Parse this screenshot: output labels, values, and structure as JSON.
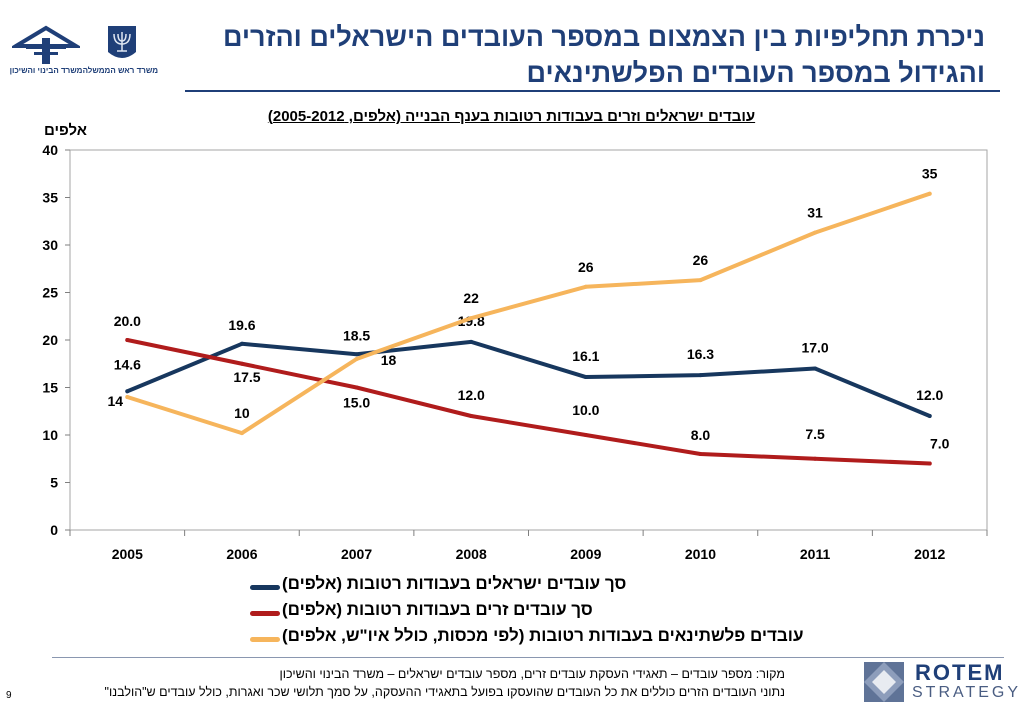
{
  "header": {
    "title_line1": "ניכרת תחליפיות בין הצמצום במספר העובדים הישראלים והזרים",
    "title_line2": "והגידול במספר העובדים הפלשתינאים",
    "logo1_caption": "משרד הבינוי והשיכון",
    "logo2_caption": "משרד ראש הממשלה",
    "logo1_icon": "house-icon",
    "logo2_icon": "menorah-emblem-icon"
  },
  "chart_data": {
    "type": "line",
    "title": "עובדים ישראלים וזרים בעבודות רטובות בענף הבנייה (אלפים, 2005-2012)",
    "ylabel": "אלפים",
    "xlabel": "",
    "categories": [
      "2005",
      "2006",
      "2007",
      "2008",
      "2009",
      "2010",
      "2011",
      "2012"
    ],
    "ylim": [
      0,
      40
    ],
    "yticks": [
      0,
      5,
      10,
      15,
      20,
      25,
      30,
      35,
      40
    ],
    "grid": false,
    "series": [
      {
        "name": "סך עובדים ישראלים בעבודות רטובות (אלפים)",
        "color": "#17375e",
        "values": [
          14.6,
          19.6,
          18.5,
          19.8,
          16.1,
          16.3,
          17.0,
          12.0
        ],
        "labels": [
          "14.6",
          "19.6",
          "18.5",
          "19.8",
          "16.1",
          "16.3",
          "17.0",
          "12.0"
        ]
      },
      {
        "name": "סך עובדים זרים בעבודות רטובות (אלפים)",
        "color": "#b01c1c",
        "values": [
          20.0,
          17.5,
          15.0,
          12.0,
          10.0,
          8.0,
          7.5,
          7.0
        ],
        "labels": [
          "20.0",
          "17.5",
          "15.0",
          "12.0",
          "10.0",
          "8.0",
          "7.5",
          "7.0"
        ]
      },
      {
        "name": "עובדים פלשתינאים בעבודות רטובות (לפי מכסות, כולל איו\"ש, אלפים)",
        "color": "#f6b55c",
        "values": [
          14,
          10.2,
          18,
          22.3,
          25.6,
          26.3,
          31.3,
          35.4
        ],
        "labels": [
          "14",
          "10",
          "18",
          "22",
          "26",
          "26",
          "31",
          "35"
        ]
      }
    ]
  },
  "footer": {
    "source_line": "מקור: מספר עובדים – תאגידי העסקת עובדים זרים, מספר עובדים ישראלים – משרד הבינוי והשיכון",
    "note_line": "נתוני העובדים הזרים כוללים את כל העובדים שהועסקו בפועל בתאגידי ההעסקה, על סמך תלושי שכר ואגרות, כולל עובדים ש\"הולבנו\"",
    "page_number": "9",
    "brand_top": "ROTEM",
    "brand_bottom": "STRATEGY",
    "brand_icon": "rotem-logo-icon"
  }
}
